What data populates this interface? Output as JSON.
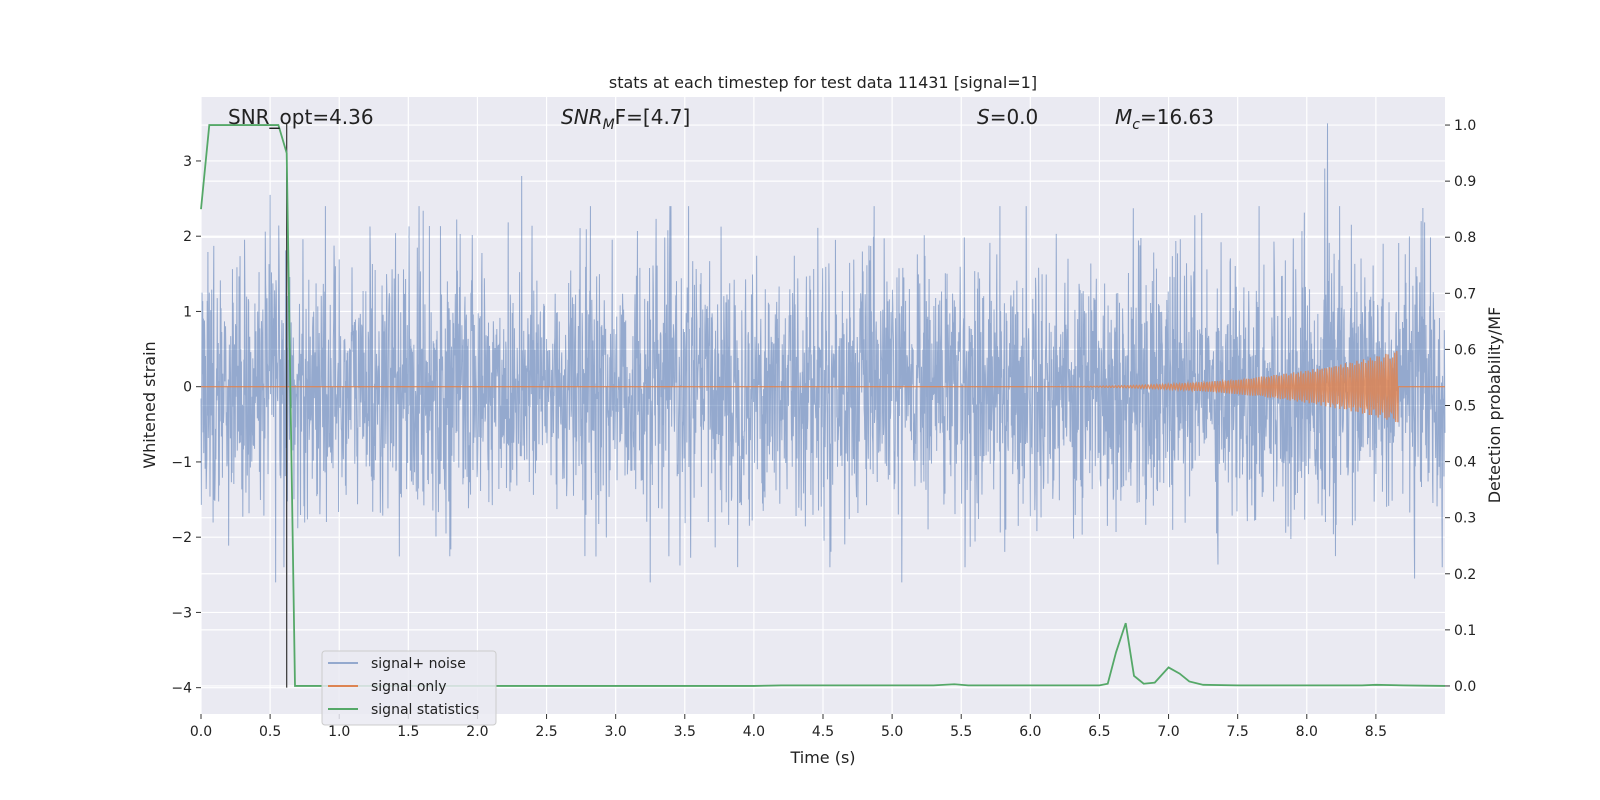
{
  "chart_data": {
    "type": "line",
    "title": "stats at each timestep for test data 11431 [signal=1]",
    "xlabel": "Time (s)",
    "ylabel_left": "Whitened strain",
    "ylabel_right": "Detection probability/MF",
    "xlim": [
      0.0,
      9.0
    ],
    "ylim_left": [
      -4.35,
      3.85
    ],
    "ylim_right": [
      -0.05,
      1.05
    ],
    "x_ticks": [
      "0.0",
      "0.5",
      "1.0",
      "1.5",
      "2.0",
      "2.5",
      "3.0",
      "3.5",
      "4.0",
      "4.5",
      "5.0",
      "5.5",
      "6.0",
      "6.5",
      "7.0",
      "7.5",
      "8.0",
      "8.5"
    ],
    "y_ticks_left": [
      "3",
      "2",
      "1",
      "0",
      "−1",
      "−2",
      "−3",
      "−4"
    ],
    "y_ticks_right": [
      "1.0",
      "0.9",
      "0.8",
      "0.7",
      "0.6",
      "0.5",
      "0.4",
      "0.3",
      "0.2",
      "0.1",
      "0.0"
    ],
    "grid": true,
    "annotations": {
      "snr_opt": "SNR_opt=4.36",
      "snr_mf_name": "SNR",
      "snr_mf_sub": "M",
      "snr_mf_rest": "F=[4.7]",
      "s_name": "S",
      "s_rest": "=0.0",
      "mc_name": "M",
      "mc_sub": "c",
      "mc_rest": "=16.63"
    },
    "marker_line": {
      "x": 0.62,
      "y_top": 3.5,
      "y_bottom": -4.0
    },
    "legend": {
      "placement": "lower-left",
      "entries": [
        "signal+ noise",
        "signal only",
        "signal statistics"
      ]
    },
    "series": [
      {
        "name": "signal+ noise",
        "axis": "left",
        "color": "#4c72b0",
        "description_of_shape": "dense whitened noise, roughly ±1.2 with spikes to ±2.5",
        "peaks": [
          {
            "x": 0.5,
            "y": 2.55
          },
          {
            "x": 0.54,
            "y": -2.6
          },
          {
            "x": 2.32,
            "y": 2.8
          },
          {
            "x": 3.25,
            "y": -2.6
          },
          {
            "x": 5.07,
            "y": -2.6
          },
          {
            "x": 8.13,
            "y": 2.9
          },
          {
            "x": 8.15,
            "y": 3.5
          },
          {
            "x": 8.78,
            "y": -2.55
          }
        ]
      },
      {
        "name": "signal only",
        "axis": "left",
        "color": "#dd8452",
        "chirp_start": 5.8,
        "chirp_end": 8.66,
        "peak_amplitude": 0.48
      },
      {
        "name": "signal statistics",
        "axis": "right",
        "color": "#55a868",
        "x": [
          0.0,
          0.06,
          0.12,
          0.2,
          0.3,
          0.4,
          0.5,
          0.56,
          0.62,
          0.68,
          0.8,
          1.0,
          2.0,
          3.0,
          4.0,
          4.2,
          5.0,
          5.3,
          5.45,
          5.55,
          6.0,
          6.5,
          6.56,
          6.62,
          6.69,
          6.75,
          6.82,
          6.9,
          7.0,
          7.08,
          7.15,
          7.25,
          7.5,
          8.0,
          8.4,
          8.5,
          8.7,
          9.0
        ],
        "values": [
          0.85,
          1.0,
          1.0,
          1.0,
          1.0,
          1.0,
          1.0,
          1.0,
          0.95,
          0.0,
          0.0,
          0.0,
          0.0,
          0.0,
          0.0,
          0.001,
          0.001,
          0.001,
          0.003,
          0.001,
          0.001,
          0.001,
          0.004,
          0.06,
          0.112,
          0.018,
          0.004,
          0.006,
          0.033,
          0.022,
          0.008,
          0.002,
          0.001,
          0.001,
          0.001,
          0.002,
          0.001,
          0.0
        ]
      }
    ]
  }
}
